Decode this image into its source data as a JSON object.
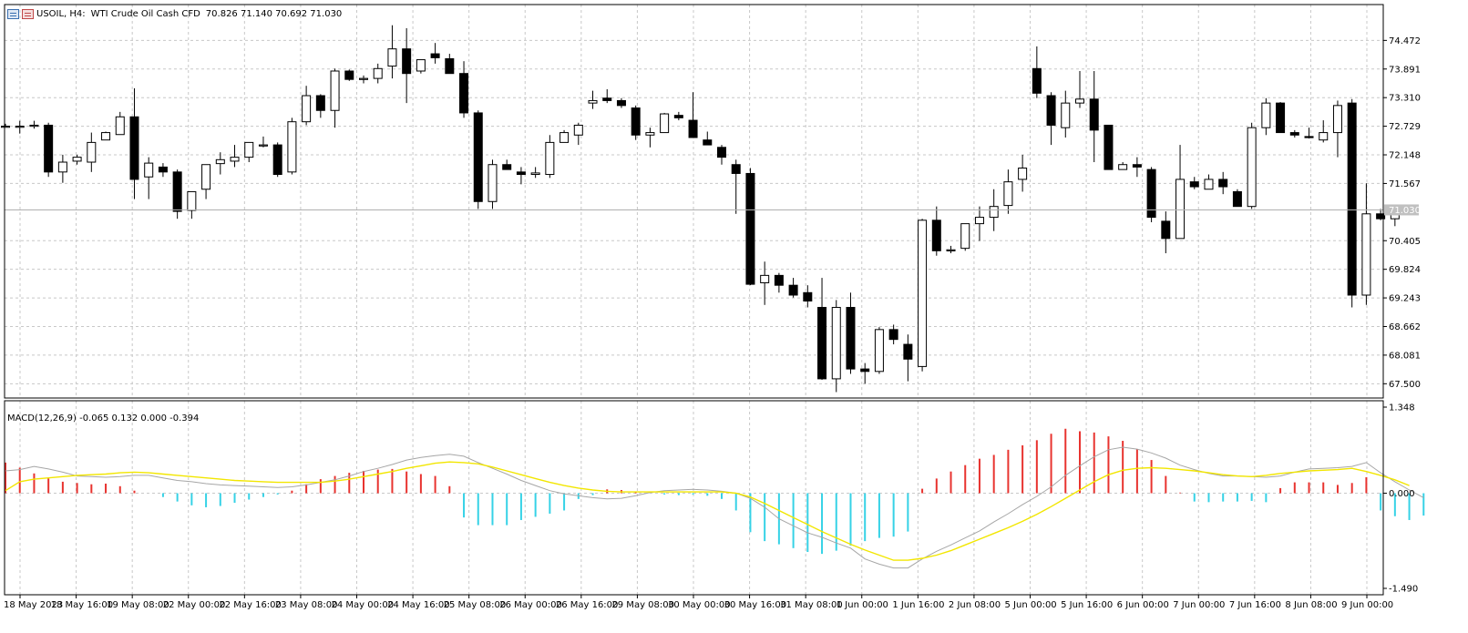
{
  "header": {
    "symbol": "USOIL, H4:",
    "description": "WTI Crude Oil Cash CFD",
    "ohlc": "70.826 71.140 70.692 71.030"
  },
  "price_axis": {
    "labels": [
      "74.472",
      "73.891",
      "73.310",
      "72.729",
      "72.148",
      "71.567",
      "70.405",
      "69.824",
      "69.243",
      "68.662",
      "68.081",
      "67.500"
    ],
    "current_price": "71.030",
    "min": 67.21,
    "max": 75.2
  },
  "macd": {
    "title": "MACD(12,26,9) -0.065 0.132 0.000 -0.394",
    "axis_labels": [
      "1.348",
      "0.000",
      "-1.490"
    ],
    "min": -1.49,
    "max": 1.348
  },
  "time_axis": {
    "labels": [
      "18 May 2023",
      "18 May 16:00",
      "19 May 08:00",
      "22 May 00:00",
      "22 May 16:00",
      "23 May 08:00",
      "24 May 00:00",
      "24 May 16:00",
      "25 May 08:00",
      "26 May 00:00",
      "26 May 16:00",
      "29 May 08:00",
      "30 May 00:00",
      "30 May 16:00",
      "31 May 08:00",
      "1 Jun 00:00",
      "1 Jun 16:00",
      "2 Jun 08:00",
      "5 Jun 00:00",
      "5 Jun 16:00",
      "6 Jun 00:00",
      "7 Jun 00:00",
      "7 Jun 16:00",
      "8 Jun 08:00",
      "9 Jun 00:00"
    ]
  },
  "colors": {
    "background": "#ffffff",
    "grid": "#c8c8c8",
    "bull_body": "#ffffff",
    "bear_body": "#000000",
    "histogram_positive": "#e8332f",
    "histogram_negative": "#36d2e6",
    "signal_line": "#f2e600",
    "macd_line": "#a6a6a6",
    "current_price_tag": "#c0c0c0"
  },
  "chart_data": {
    "type": "candlestick",
    "symbol": "USOIL",
    "timeframe": "H4",
    "candles": [
      [
        72.73,
        72.78,
        72.73,
        72.73
      ],
      [
        72.73,
        72.84,
        72.58,
        72.73
      ],
      [
        72.73,
        72.84,
        72.68,
        72.75
      ],
      [
        72.75,
        72.8,
        71.7,
        71.8
      ],
      [
        71.8,
        72.15,
        71.58,
        72.0
      ],
      [
        72.02,
        72.15,
        71.95,
        72.1
      ],
      [
        72.0,
        72.6,
        71.8,
        72.4
      ],
      [
        72.45,
        72.62,
        72.45,
        72.6
      ],
      [
        72.56,
        73.02,
        72.56,
        72.92
      ],
      [
        72.92,
        73.5,
        71.25,
        71.65
      ],
      [
        71.7,
        72.1,
        71.25,
        71.98
      ],
      [
        71.9,
        71.98,
        71.7,
        71.8
      ],
      [
        71.8,
        71.85,
        70.85,
        71.0
      ],
      [
        71.02,
        71.4,
        70.85,
        71.4
      ],
      [
        71.45,
        71.95,
        71.25,
        71.95
      ],
      [
        71.97,
        72.2,
        71.75,
        72.05
      ],
      [
        72.02,
        72.35,
        71.9,
        72.1
      ],
      [
        72.1,
        72.4,
        72.0,
        72.4
      ],
      [
        72.35,
        72.52,
        72.3,
        72.35
      ],
      [
        72.35,
        72.4,
        71.7,
        71.75
      ],
      [
        71.8,
        72.9,
        71.75,
        72.82
      ],
      [
        72.82,
        73.55,
        72.75,
        73.35
      ],
      [
        73.35,
        73.38,
        72.9,
        73.05
      ],
      [
        73.05,
        73.9,
        72.7,
        73.85
      ],
      [
        73.85,
        73.88,
        73.65,
        73.68
      ],
      [
        73.7,
        73.76,
        73.6,
        73.7
      ],
      [
        73.7,
        74.0,
        73.6,
        73.9
      ],
      [
        73.95,
        74.78,
        73.7,
        74.3
      ],
      [
        74.3,
        74.72,
        73.2,
        73.8
      ],
      [
        73.85,
        74.05,
        73.8,
        74.08
      ],
      [
        74.2,
        74.42,
        74.0,
        74.12
      ],
      [
        74.1,
        74.2,
        73.8,
        73.8
      ],
      [
        73.8,
        74.05,
        72.9,
        73.0
      ],
      [
        73.0,
        73.05,
        71.05,
        71.2
      ],
      [
        71.2,
        72.05,
        71.05,
        71.95
      ],
      [
        71.95,
        72.05,
        71.85,
        71.85
      ],
      [
        71.8,
        71.9,
        71.55,
        71.75
      ],
      [
        71.75,
        71.9,
        71.68,
        71.78
      ],
      [
        71.75,
        72.55,
        71.68,
        72.4
      ],
      [
        72.4,
        72.65,
        72.4,
        72.6
      ],
      [
        72.55,
        72.8,
        72.35,
        72.75
      ],
      [
        73.2,
        73.45,
        73.08,
        73.25
      ],
      [
        73.3,
        73.48,
        73.2,
        73.25
      ],
      [
        73.25,
        73.3,
        73.1,
        73.15
      ],
      [
        73.1,
        73.15,
        72.45,
        72.55
      ],
      [
        72.55,
        72.7,
        72.3,
        72.6
      ],
      [
        72.6,
        73.0,
        72.6,
        72.98
      ],
      [
        72.95,
        73.02,
        72.85,
        72.9
      ],
      [
        72.85,
        73.42,
        72.5,
        72.5
      ],
      [
        72.45,
        72.62,
        72.35,
        72.35
      ],
      [
        72.3,
        72.35,
        71.95,
        72.1
      ],
      [
        71.95,
        72.05,
        70.95,
        71.77
      ],
      [
        71.77,
        71.88,
        69.5,
        69.52
      ],
      [
        69.55,
        69.98,
        69.1,
        69.7
      ],
      [
        69.7,
        69.75,
        69.35,
        69.5
      ],
      [
        69.5,
        69.65,
        69.25,
        69.3
      ],
      [
        69.35,
        69.5,
        69.05,
        69.18
      ],
      [
        69.05,
        69.65,
        67.58,
        67.6
      ],
      [
        67.6,
        69.2,
        67.33,
        69.05
      ],
      [
        69.05,
        69.35,
        67.7,
        67.8
      ],
      [
        67.8,
        67.92,
        67.5,
        67.75
      ],
      [
        67.75,
        68.65,
        67.7,
        68.6
      ],
      [
        68.6,
        68.7,
        68.3,
        68.4
      ],
      [
        68.3,
        68.5,
        67.55,
        68.0
      ],
      [
        67.85,
        70.85,
        67.75,
        70.82
      ],
      [
        70.82,
        71.1,
        70.1,
        70.2
      ],
      [
        70.2,
        70.3,
        70.15,
        70.22
      ],
      [
        70.25,
        70.75,
        70.2,
        70.75
      ],
      [
        70.75,
        71.1,
        70.4,
        70.88
      ],
      [
        70.88,
        71.45,
        70.6,
        71.1
      ],
      [
        71.12,
        71.85,
        70.95,
        71.6
      ],
      [
        71.65,
        72.15,
        71.4,
        71.88
      ],
      [
        73.9,
        74.35,
        73.3,
        73.4
      ],
      [
        73.35,
        73.42,
        72.35,
        72.75
      ],
      [
        72.7,
        73.45,
        72.5,
        73.2
      ],
      [
        73.2,
        73.85,
        73.1,
        73.28
      ],
      [
        73.28,
        73.85,
        72.0,
        72.65
      ],
      [
        72.75,
        72.75,
        71.85,
        71.85
      ],
      [
        71.85,
        72.0,
        71.85,
        71.95
      ],
      [
        71.95,
        72.1,
        71.7,
        71.9
      ],
      [
        71.85,
        71.9,
        70.78,
        70.88
      ],
      [
        70.8,
        71.0,
        70.15,
        70.45
      ],
      [
        70.45,
        72.35,
        70.45,
        71.65
      ],
      [
        71.6,
        71.7,
        71.45,
        71.5
      ],
      [
        71.45,
        71.75,
        71.45,
        71.65
      ],
      [
        71.65,
        71.8,
        71.35,
        71.5
      ],
      [
        71.4,
        71.45,
        71.1,
        71.1
      ],
      [
        71.1,
        72.8,
        71.05,
        72.7
      ],
      [
        72.7,
        73.3,
        72.55,
        73.2
      ],
      [
        73.2,
        73.22,
        72.6,
        72.6
      ],
      [
        72.6,
        72.65,
        72.5,
        72.55
      ],
      [
        72.52,
        72.7,
        72.48,
        72.5
      ],
      [
        72.45,
        72.85,
        72.4,
        72.6
      ],
      [
        72.6,
        73.25,
        72.1,
        73.15
      ],
      [
        73.2,
        73.28,
        69.05,
        69.3
      ],
      [
        69.3,
        71.57,
        69.1,
        70.95
      ],
      [
        70.95,
        71.05,
        70.82,
        70.85
      ],
      [
        70.85,
        71.1,
        70.7,
        71.03
      ]
    ],
    "macd_indicator": {
      "parameters": [
        12,
        26,
        9
      ],
      "histogram": [
        0.48,
        0.4,
        0.31,
        0.23,
        0.18,
        0.16,
        0.14,
        0.15,
        0.11,
        0.04,
        0.0,
        -0.06,
        -0.13,
        -0.19,
        -0.22,
        -0.2,
        -0.15,
        -0.1,
        -0.06,
        -0.02,
        0.04,
        0.14,
        0.22,
        0.27,
        0.32,
        0.35,
        0.37,
        0.38,
        0.34,
        0.3,
        0.27,
        0.11,
        -0.38,
        -0.5,
        -0.5,
        -0.5,
        -0.42,
        -0.37,
        -0.32,
        -0.27,
        -0.09,
        -0.03,
        0.06,
        0.05,
        0.02,
        0.0,
        -0.02,
        -0.03,
        -0.02,
        -0.04,
        -0.09,
        -0.27,
        -0.61,
        -0.75,
        -0.8,
        -0.86,
        -0.92,
        -0.95,
        -0.9,
        -0.82,
        -0.75,
        -0.7,
        -0.68,
        -0.6,
        0.07,
        0.23,
        0.34,
        0.44,
        0.54,
        0.6,
        0.68,
        0.75,
        0.83,
        0.93,
        1.01,
        0.97,
        0.95,
        0.89,
        0.82,
        0.69,
        0.52,
        0.27,
        0.01,
        -0.13,
        -0.14,
        -0.13,
        -0.13,
        -0.12,
        -0.14,
        0.08,
        0.17,
        0.17,
        0.17,
        0.13,
        0.16,
        0.25,
        -0.27,
        -0.36,
        -0.42,
        -0.35
      ],
      "macd_line": [
        0.35,
        0.37,
        0.42,
        0.38,
        0.33,
        0.27,
        0.26,
        0.25,
        0.26,
        0.28,
        0.28,
        0.24,
        0.2,
        0.18,
        0.15,
        0.13,
        0.12,
        0.11,
        0.1,
        0.09,
        0.1,
        0.13,
        0.17,
        0.21,
        0.27,
        0.34,
        0.39,
        0.45,
        0.52,
        0.56,
        0.59,
        0.61,
        0.58,
        0.48,
        0.39,
        0.3,
        0.2,
        0.12,
        0.04,
        -0.01,
        -0.04,
        -0.07,
        -0.09,
        -0.08,
        -0.04,
        0.01,
        0.04,
        0.05,
        0.06,
        0.05,
        0.03,
        0.0,
        -0.08,
        -0.22,
        -0.4,
        -0.51,
        -0.62,
        -0.69,
        -0.78,
        -0.86,
        -1.03,
        -1.11,
        -1.17,
        -1.17,
        -1.03,
        -0.91,
        -0.81,
        -0.7,
        -0.59,
        -0.45,
        -0.32,
        -0.18,
        -0.05,
        0.1,
        0.28,
        0.43,
        0.57,
        0.68,
        0.72,
        0.69,
        0.63,
        0.55,
        0.44,
        0.37,
        0.31,
        0.27,
        0.27,
        0.26,
        0.25,
        0.27,
        0.33,
        0.38,
        0.39,
        0.4,
        0.42,
        0.48,
        0.32,
        0.18,
        0.05,
        -0.07
      ],
      "signal_line": [
        0.04,
        0.18,
        0.22,
        0.24,
        0.26,
        0.28,
        0.29,
        0.3,
        0.32,
        0.33,
        0.32,
        0.3,
        0.28,
        0.26,
        0.24,
        0.22,
        0.2,
        0.19,
        0.18,
        0.17,
        0.17,
        0.17,
        0.17,
        0.19,
        0.22,
        0.26,
        0.3,
        0.34,
        0.39,
        0.43,
        0.47,
        0.49,
        0.48,
        0.46,
        0.41,
        0.35,
        0.29,
        0.23,
        0.17,
        0.12,
        0.08,
        0.05,
        0.03,
        0.02,
        0.02,
        0.02,
        0.02,
        0.02,
        0.02,
        0.02,
        0.02,
        0.0,
        -0.06,
        -0.16,
        -0.27,
        -0.38,
        -0.49,
        -0.6,
        -0.7,
        -0.8,
        -0.89,
        -0.97,
        -1.05,
        -1.05,
        -1.02,
        -0.97,
        -0.9,
        -0.81,
        -0.72,
        -0.63,
        -0.54,
        -0.44,
        -0.33,
        -0.21,
        -0.08,
        0.05,
        0.18,
        0.29,
        0.36,
        0.39,
        0.4,
        0.39,
        0.37,
        0.35,
        0.32,
        0.29,
        0.27,
        0.26,
        0.28,
        0.31,
        0.33,
        0.35,
        0.36,
        0.37,
        0.39,
        0.34,
        0.28,
        0.21,
        0.12
      ]
    }
  }
}
